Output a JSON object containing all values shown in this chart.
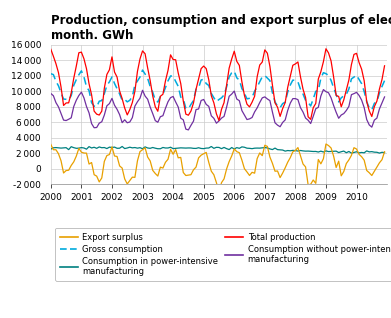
{
  "title_line1": "Production, consumption and export surplus of electric energy per",
  "title_line2": "month. GWh",
  "title_fontsize": 8.5,
  "ylim": [
    -2000,
    16000
  ],
  "yticks": [
    -2000,
    0,
    2000,
    4000,
    6000,
    8000,
    10000,
    12000,
    14000,
    16000
  ],
  "xlim_start": 2000.0,
  "xlim_end": 2011.0,
  "xtick_years": [
    2000,
    2001,
    2002,
    2003,
    2004,
    2005,
    2006,
    2007,
    2008,
    2009,
    2010
  ],
  "colors": {
    "export_surplus": "#E8A000",
    "consumption_power_intensive": "#008080",
    "consumption_without": "#7030A0",
    "gross_consumption": "#00AADD",
    "total_production": "#FF0000"
  },
  "legend_order": [
    "export_surplus",
    "gross_consumption",
    "consumption_power_intensive",
    "total_production",
    "consumption_without"
  ],
  "legend_labels": {
    "export_surplus": "Export surplus",
    "gross_consumption": "Gross consumption",
    "consumption_power_intensive": "Consumption in power-intensive\nmanufacturing",
    "total_production": "Total production",
    "consumption_without": "Consumption without power-intensive\nmanufacturing"
  },
  "legend_styles": {
    "export_surplus": {
      "linestyle": "-"
    },
    "gross_consumption": {
      "linestyle": "--"
    },
    "consumption_power_intensive": {
      "linestyle": "-"
    },
    "total_production": {
      "linestyle": "-"
    },
    "consumption_without": {
      "linestyle": "-"
    }
  }
}
